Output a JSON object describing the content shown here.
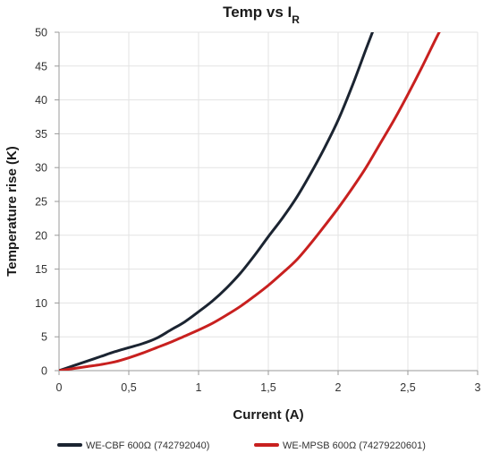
{
  "chart_data": {
    "type": "line",
    "title": "Temp vs I",
    "title_subscript": "R",
    "xlabel": "Current (A)",
    "ylabel": "Temperature rise (K)",
    "xlim": [
      0,
      3
    ],
    "ylim": [
      0,
      50
    ],
    "x_ticks": [
      0,
      0.5,
      1,
      1.5,
      2,
      2.5,
      3
    ],
    "x_tick_labels": [
      "0",
      "0,5",
      "1",
      "1,5",
      "2",
      "2,5",
      "3"
    ],
    "y_ticks": [
      0,
      5,
      10,
      15,
      20,
      25,
      30,
      35,
      40,
      45,
      50
    ],
    "y_tick_labels": [
      "0",
      "5",
      "10",
      "15",
      "20",
      "25",
      "30",
      "35",
      "40",
      "45",
      "50"
    ],
    "grid": true,
    "legend_position": "bottom",
    "series": [
      {
        "name": "WE-CBF 600Ω  (742792040)",
        "color": "#1b2431",
        "x": [
          0,
          0.1,
          0.2,
          0.3,
          0.4,
          0.5,
          0.6,
          0.7,
          0.8,
          0.9,
          1.0,
          1.1,
          1.2,
          1.3,
          1.4,
          1.5,
          1.6,
          1.7,
          1.8,
          1.9,
          2.0,
          2.1,
          2.2,
          2.25
        ],
        "y": [
          0,
          0.7,
          1.4,
          2.1,
          2.8,
          3.4,
          4.0,
          4.8,
          6.0,
          7.2,
          8.7,
          10.3,
          12.2,
          14.4,
          17.0,
          19.8,
          22.5,
          25.5,
          29.0,
          32.8,
          37.0,
          42.0,
          47.5,
          50.2
        ]
      },
      {
        "name": "WE-MPSB 600Ω  (74279220601)",
        "color": "#c8201f",
        "x": [
          0,
          0.1,
          0.2,
          0.3,
          0.4,
          0.5,
          0.6,
          0.7,
          0.8,
          0.9,
          1.0,
          1.1,
          1.2,
          1.3,
          1.4,
          1.5,
          1.6,
          1.7,
          1.8,
          1.9,
          2.0,
          2.1,
          2.2,
          2.3,
          2.4,
          2.5,
          2.6,
          2.7,
          2.75
        ],
        "y": [
          0,
          0.3,
          0.6,
          0.9,
          1.3,
          1.9,
          2.6,
          3.4,
          4.2,
          5.1,
          6.0,
          7.0,
          8.2,
          9.5,
          11.0,
          12.6,
          14.4,
          16.3,
          18.7,
          21.3,
          24.0,
          26.9,
          30.0,
          33.5,
          37.0,
          40.8,
          44.8,
          49.0,
          51.0
        ]
      }
    ]
  }
}
